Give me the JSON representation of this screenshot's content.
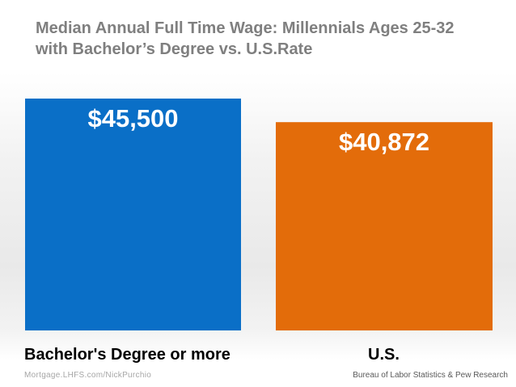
{
  "chart_data": {
    "type": "bar",
    "title": [
      "Median Annual Full Time Wage: Millennials Ages 25-32",
      "with Bachelor’s Degree vs. U.S.Rate"
    ],
    "categories": [
      "Bachelor's Degree or more",
      "U.S."
    ],
    "values": [
      45500,
      40872
    ],
    "data_labels": [
      "$45,500",
      "$40,872"
    ],
    "colors": [
      "#0a6fc7",
      "#e36c0a"
    ],
    "xlabel": "",
    "ylabel": "",
    "grid": false
  },
  "footer": {
    "left": "Mortgage.LHFS.com/NickPurchio",
    "right": "Bureau of Labor Statistics & Pew Research"
  }
}
